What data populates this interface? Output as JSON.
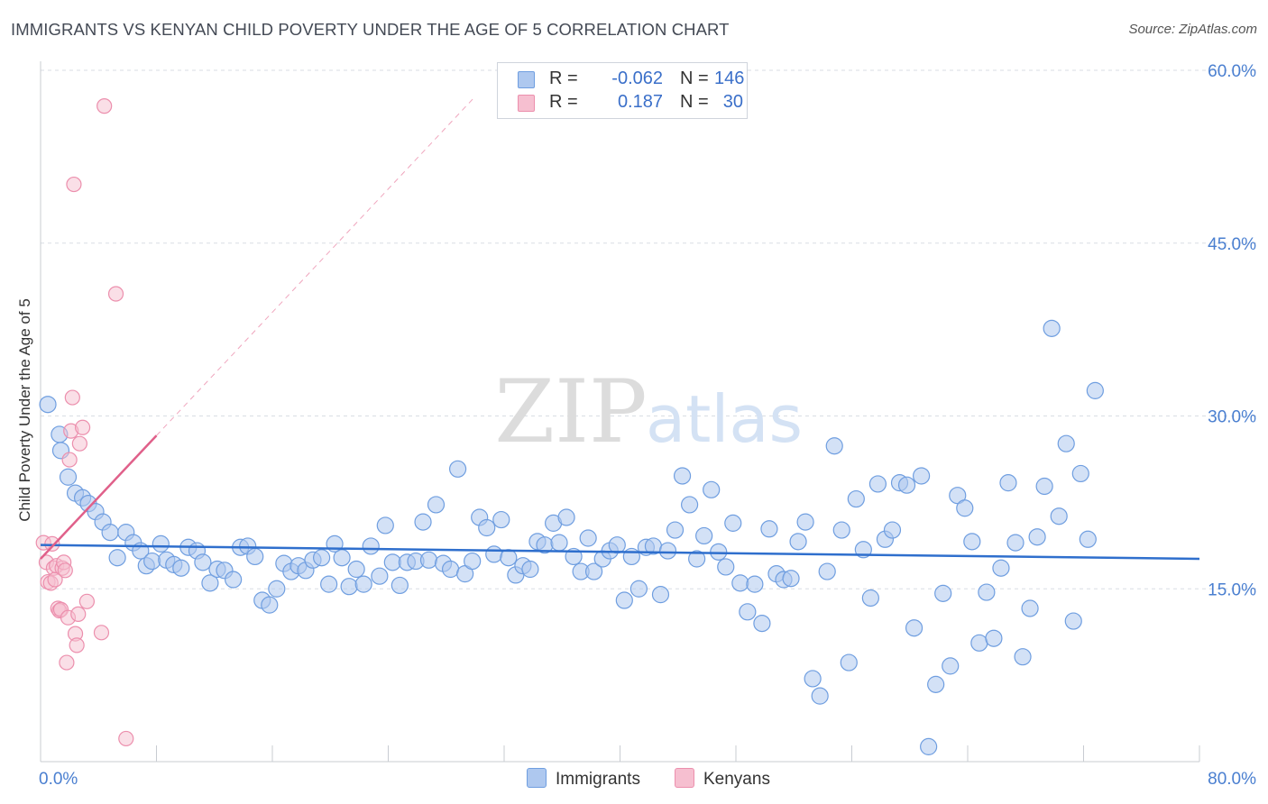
{
  "header": {
    "title": "IMMIGRANTS VS KENYAN CHILD POVERTY UNDER THE AGE OF 5 CORRELATION CHART",
    "source": "Source: ZipAtlas.com"
  },
  "watermark": {
    "zip": "ZIP",
    "atlas": "atlas"
  },
  "colors": {
    "immigrants_fill": "#aec8ef",
    "immigrants_stroke": "#6f9ee0",
    "immigrants_line": "#2f6fcd",
    "kenyans_fill": "#f6bfd0",
    "kenyans_stroke": "#ec8fad",
    "kenyans_line": "#e0608a",
    "tick_text": "#4a7fd0"
  },
  "legend": {
    "items": [
      {
        "r_label": "R =",
        "r_value": "-0.062",
        "n_label": "N =",
        "n_value": "146"
      },
      {
        "r_label": "R =",
        "r_value": "0.187",
        "n_label": "N =",
        "n_value": "30"
      }
    ]
  },
  "bottom_legend": {
    "immigrants": "Immigrants",
    "kenyans": "Kenyans"
  },
  "chart_data": {
    "type": "scatter",
    "title": "IMMIGRANTS VS KENYAN CHILD POVERTY UNDER THE AGE OF 5 CORRELATION CHART",
    "xlabel": "",
    "ylabel": "Child Poverty Under the Age of 5",
    "xlim": [
      0,
      80
    ],
    "ylim": [
      0,
      60
    ],
    "x_ticks": [
      "0.0%",
      "80.0%"
    ],
    "y_ticks": [
      {
        "value": 15,
        "label": "15.0%"
      },
      {
        "value": 30,
        "label": "30.0%"
      },
      {
        "value": 45,
        "label": "45.0%"
      },
      {
        "value": 60,
        "label": "60.0%"
      }
    ],
    "grid": true,
    "legend_position": "top-center",
    "series": [
      {
        "name": "Immigrants",
        "r": -0.062,
        "n": 146,
        "trend": {
          "x": [
            0,
            80
          ],
          "y": [
            18.8,
            17.6
          ]
        },
        "points": [
          [
            0.5,
            31.0
          ],
          [
            1.3,
            28.4
          ],
          [
            1.4,
            27.0
          ],
          [
            1.9,
            24.7
          ],
          [
            2.4,
            23.3
          ],
          [
            2.9,
            22.9
          ],
          [
            3.3,
            22.4
          ],
          [
            3.8,
            21.7
          ],
          [
            4.3,
            20.8
          ],
          [
            4.8,
            19.9
          ],
          [
            5.3,
            17.7
          ],
          [
            5.9,
            19.9
          ],
          [
            6.4,
            19.0
          ],
          [
            6.9,
            18.3
          ],
          [
            7.3,
            17.0
          ],
          [
            7.7,
            17.4
          ],
          [
            8.3,
            18.9
          ],
          [
            8.7,
            17.5
          ],
          [
            9.2,
            17.1
          ],
          [
            9.7,
            16.8
          ],
          [
            10.2,
            18.6
          ],
          [
            10.8,
            18.3
          ],
          [
            11.2,
            17.3
          ],
          [
            11.7,
            15.5
          ],
          [
            12.2,
            16.7
          ],
          [
            12.7,
            16.6
          ],
          [
            13.3,
            15.8
          ],
          [
            13.8,
            18.6
          ],
          [
            14.3,
            18.7
          ],
          [
            14.8,
            17.8
          ],
          [
            15.3,
            14.0
          ],
          [
            15.8,
            13.6
          ],
          [
            16.3,
            15.0
          ],
          [
            16.8,
            17.2
          ],
          [
            17.3,
            16.5
          ],
          [
            17.8,
            17.0
          ],
          [
            18.3,
            16.6
          ],
          [
            18.8,
            17.5
          ],
          [
            19.4,
            17.7
          ],
          [
            19.9,
            15.4
          ],
          [
            20.3,
            18.9
          ],
          [
            20.8,
            17.7
          ],
          [
            21.3,
            15.2
          ],
          [
            21.8,
            16.7
          ],
          [
            22.3,
            15.4
          ],
          [
            22.8,
            18.7
          ],
          [
            23.4,
            16.1
          ],
          [
            23.8,
            20.5
          ],
          [
            24.3,
            17.3
          ],
          [
            24.8,
            15.3
          ],
          [
            25.3,
            17.3
          ],
          [
            25.9,
            17.4
          ],
          [
            26.4,
            20.8
          ],
          [
            26.8,
            17.5
          ],
          [
            27.3,
            22.3
          ],
          [
            27.8,
            17.2
          ],
          [
            28.3,
            16.7
          ],
          [
            28.8,
            25.4
          ],
          [
            29.3,
            16.3
          ],
          [
            29.8,
            17.4
          ],
          [
            30.3,
            21.2
          ],
          [
            30.8,
            20.3
          ],
          [
            31.3,
            18.0
          ],
          [
            31.8,
            21.0
          ],
          [
            32.3,
            17.7
          ],
          [
            32.8,
            16.2
          ],
          [
            33.3,
            17.0
          ],
          [
            33.8,
            16.7
          ],
          [
            34.3,
            19.1
          ],
          [
            34.8,
            18.8
          ],
          [
            35.4,
            20.7
          ],
          [
            35.8,
            19.0
          ],
          [
            36.3,
            21.2
          ],
          [
            36.8,
            17.8
          ],
          [
            37.3,
            16.5
          ],
          [
            37.8,
            19.4
          ],
          [
            38.2,
            16.5
          ],
          [
            38.8,
            17.6
          ],
          [
            39.3,
            18.3
          ],
          [
            39.8,
            18.8
          ],
          [
            40.3,
            14.0
          ],
          [
            40.8,
            17.8
          ],
          [
            41.3,
            15.0
          ],
          [
            41.8,
            18.6
          ],
          [
            42.3,
            18.7
          ],
          [
            42.8,
            14.5
          ],
          [
            43.3,
            18.3
          ],
          [
            43.8,
            20.1
          ],
          [
            44.3,
            24.8
          ],
          [
            44.8,
            22.3
          ],
          [
            45.3,
            17.6
          ],
          [
            45.8,
            19.6
          ],
          [
            46.3,
            23.6
          ],
          [
            46.8,
            18.2
          ],
          [
            47.3,
            16.9
          ],
          [
            47.8,
            20.7
          ],
          [
            48.3,
            15.5
          ],
          [
            48.8,
            13.0
          ],
          [
            49.3,
            15.4
          ],
          [
            49.8,
            12.0
          ],
          [
            50.3,
            20.2
          ],
          [
            50.8,
            16.3
          ],
          [
            51.3,
            15.8
          ],
          [
            51.8,
            15.9
          ],
          [
            52.3,
            19.1
          ],
          [
            52.8,
            20.8
          ],
          [
            53.3,
            7.2
          ],
          [
            53.8,
            5.7
          ],
          [
            54.3,
            16.5
          ],
          [
            54.8,
            27.4
          ],
          [
            55.3,
            20.1
          ],
          [
            55.8,
            8.6
          ],
          [
            56.3,
            22.8
          ],
          [
            56.8,
            18.4
          ],
          [
            57.3,
            14.2
          ],
          [
            57.8,
            24.1
          ],
          [
            58.3,
            19.3
          ],
          [
            58.8,
            20.1
          ],
          [
            59.3,
            24.2
          ],
          [
            59.8,
            24.0
          ],
          [
            60.3,
            11.6
          ],
          [
            60.8,
            24.8
          ],
          [
            61.3,
            1.3
          ],
          [
            61.8,
            6.7
          ],
          [
            62.3,
            14.6
          ],
          [
            62.8,
            8.3
          ],
          [
            63.3,
            23.1
          ],
          [
            63.8,
            22.0
          ],
          [
            64.3,
            19.1
          ],
          [
            64.8,
            10.3
          ],
          [
            65.3,
            14.7
          ],
          [
            65.8,
            10.7
          ],
          [
            66.3,
            16.8
          ],
          [
            66.8,
            24.2
          ],
          [
            67.3,
            19.0
          ],
          [
            67.8,
            9.1
          ],
          [
            68.3,
            13.3
          ],
          [
            68.8,
            19.5
          ],
          [
            69.3,
            23.9
          ],
          [
            69.8,
            37.6
          ],
          [
            70.3,
            21.3
          ],
          [
            70.8,
            27.6
          ],
          [
            71.3,
            12.2
          ],
          [
            71.8,
            25.0
          ],
          [
            72.3,
            19.3
          ],
          [
            72.8,
            32.2
          ]
        ]
      },
      {
        "name": "Kenyans",
        "r": 0.187,
        "n": 30,
        "trend": {
          "x": [
            0,
            8
          ],
          "y": [
            17.6,
            28.3
          ]
        },
        "points": [
          [
            0.2,
            19.0
          ],
          [
            0.4,
            17.3
          ],
          [
            0.5,
            15.6
          ],
          [
            0.7,
            15.5
          ],
          [
            0.8,
            18.9
          ],
          [
            0.9,
            16.8
          ],
          [
            1.0,
            15.8
          ],
          [
            1.1,
            17.0
          ],
          [
            1.2,
            13.3
          ],
          [
            1.3,
            13.1
          ],
          [
            1.4,
            13.2
          ],
          [
            1.5,
            16.8
          ],
          [
            1.6,
            17.3
          ],
          [
            1.7,
            16.6
          ],
          [
            1.8,
            8.6
          ],
          [
            1.9,
            12.5
          ],
          [
            2.0,
            26.2
          ],
          [
            2.1,
            28.7
          ],
          [
            2.2,
            31.6
          ],
          [
            2.3,
            50.1
          ],
          [
            2.4,
            11.1
          ],
          [
            2.5,
            10.1
          ],
          [
            2.6,
            12.8
          ],
          [
            2.7,
            27.6
          ],
          [
            2.9,
            29.0
          ],
          [
            3.2,
            13.9
          ],
          [
            4.2,
            11.2
          ],
          [
            4.4,
            56.9
          ],
          [
            5.2,
            40.6
          ],
          [
            5.9,
            2.0
          ]
        ]
      }
    ]
  }
}
